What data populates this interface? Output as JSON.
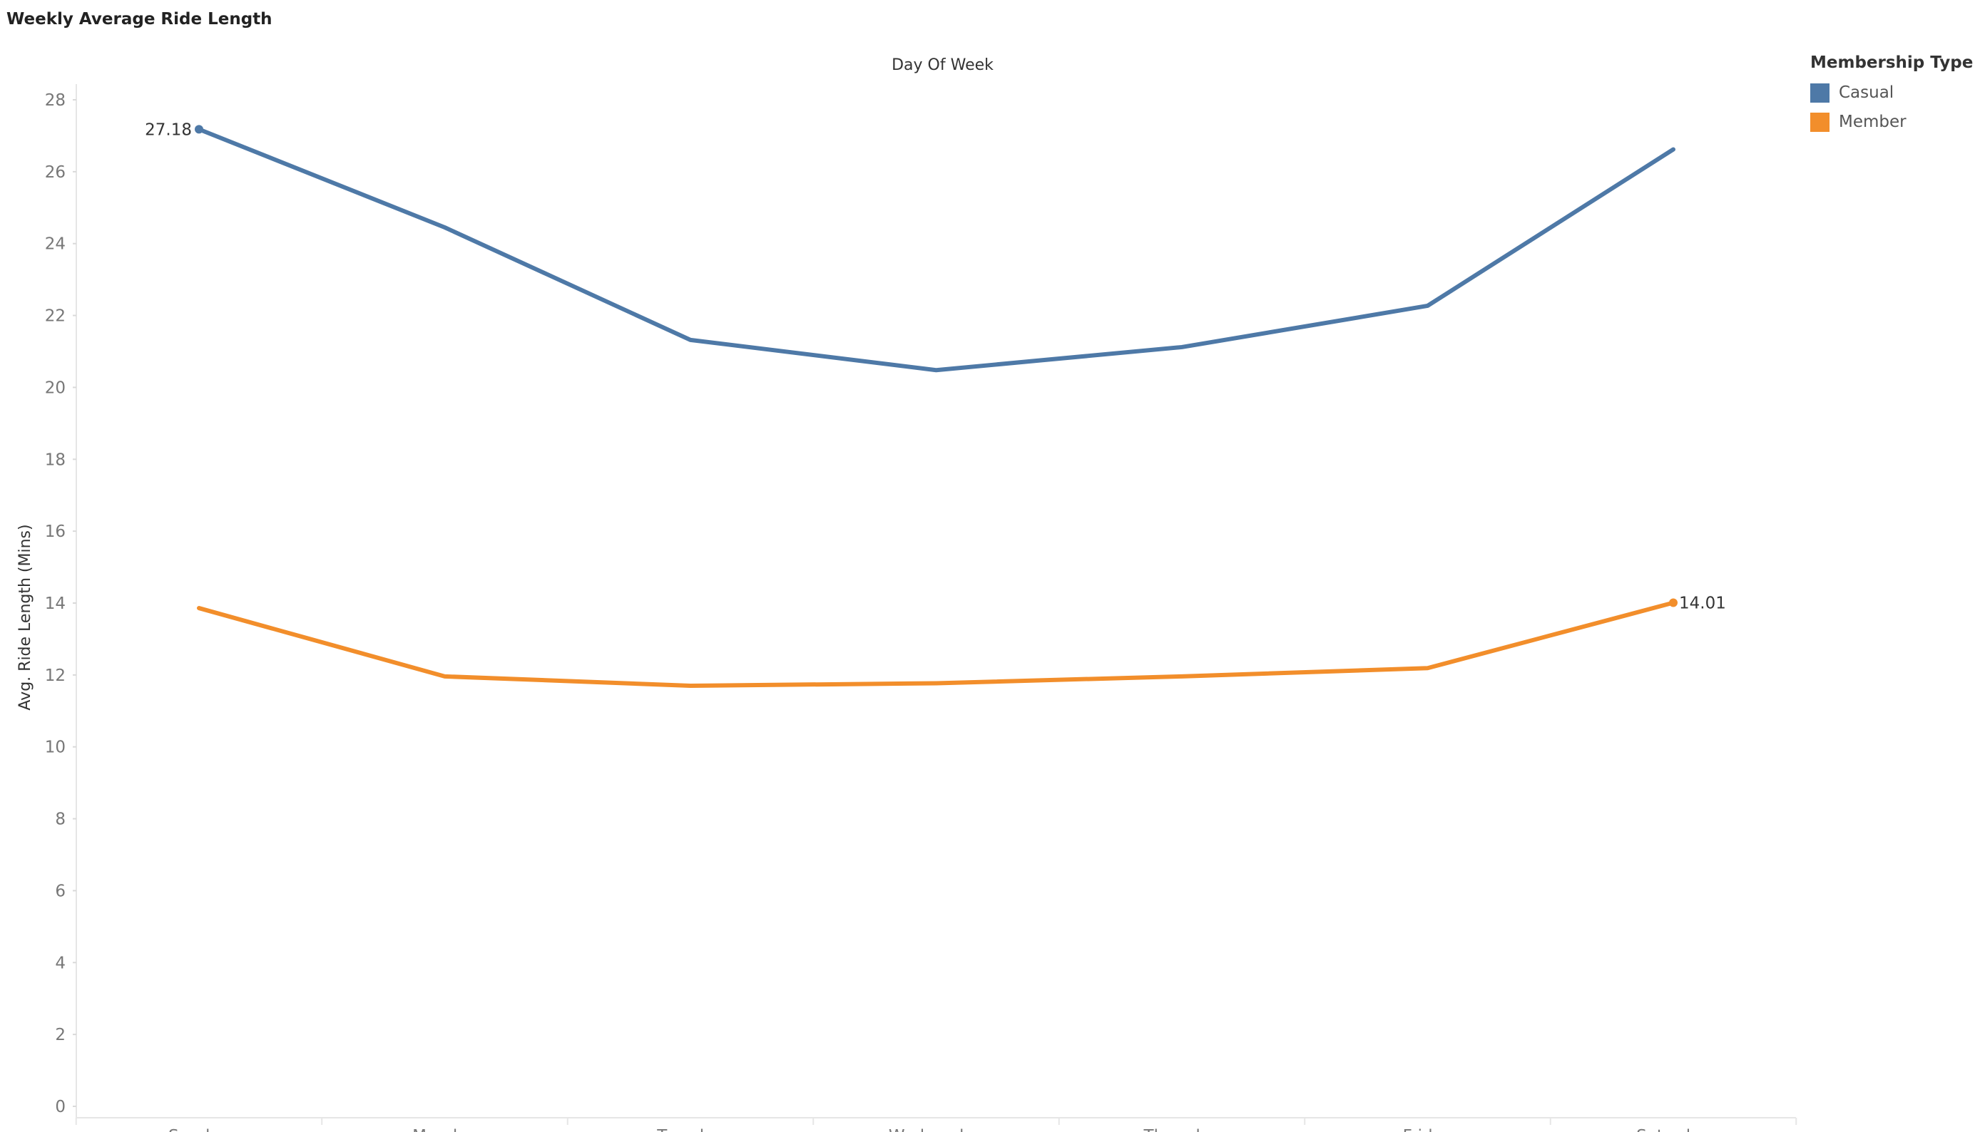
{
  "title": "Weekly Average Ride Length",
  "chart_data": {
    "type": "line",
    "x_axis_title": "Day Of Week",
    "y_axis_title": "Avg. Ride Length (Mins)",
    "categories": [
      "Sunday",
      "Monday",
      "Tuesday",
      "Wednesday",
      "Thursday",
      "Friday",
      "Saturday"
    ],
    "ylim": [
      0,
      28
    ],
    "yticks": [
      0,
      2,
      4,
      6,
      8,
      10,
      12,
      14,
      16,
      18,
      20,
      22,
      24,
      26,
      28
    ],
    "series": [
      {
        "name": "Casual",
        "color": "#4e79a7",
        "values": [
          27.18,
          24.45,
          21.32,
          20.48,
          21.12,
          22.27,
          26.62
        ],
        "labels": [
          {
            "index": 0,
            "text": "27.18",
            "side": "left"
          }
        ]
      },
      {
        "name": "Member",
        "color": "#f28e2b",
        "values": [
          13.86,
          11.96,
          11.7,
          11.77,
          11.96,
          12.19,
          14.01
        ],
        "labels": [
          {
            "index": 6,
            "text": "14.01",
            "side": "right"
          }
        ]
      }
    ],
    "legend": {
      "title": "Membership Type",
      "position": "top-right"
    },
    "grid": false
  }
}
